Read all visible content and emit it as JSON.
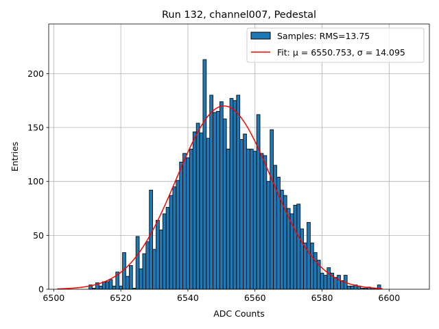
{
  "chart_data": {
    "type": "bar",
    "title": "Run 132, channel007, Pedestal",
    "xlabel": "ADC Counts",
    "ylabel": "Entries",
    "xlim": [
      6498.5,
      6612
    ],
    "ylim": [
      0,
      246
    ],
    "xticks": [
      6500,
      6520,
      6540,
      6560,
      6580,
      6600
    ],
    "yticks": [
      0,
      50,
      100,
      150,
      200
    ],
    "grid": true,
    "legend_position": "top-right",
    "bin_width": 1,
    "bins": {
      "x": [
        6511,
        6512,
        6513,
        6514,
        6515,
        6516,
        6517,
        6518,
        6519,
        6520,
        6521,
        6522,
        6523,
        6524,
        6525,
        6526,
        6527,
        6528,
        6529,
        6530,
        6531,
        6532,
        6533,
        6534,
        6535,
        6536,
        6537,
        6538,
        6539,
        6540,
        6541,
        6542,
        6543,
        6544,
        6545,
        6546,
        6547,
        6548,
        6549,
        6550,
        6551,
        6552,
        6553,
        6554,
        6555,
        6556,
        6557,
        6558,
        6559,
        6560,
        6561,
        6562,
        6563,
        6564,
        6565,
        6566,
        6567,
        6568,
        6569,
        6570,
        6571,
        6572,
        6573,
        6574,
        6575,
        6576,
        6577,
        6578,
        6579,
        6580,
        6581,
        6582,
        6583,
        6584,
        6585,
        6586,
        6587,
        6588,
        6589,
        6590,
        6591,
        6592,
        6593,
        6594,
        6595,
        6596,
        6597
      ],
      "values": [
        4,
        1,
        6,
        3,
        7,
        7,
        9,
        3,
        16,
        3,
        34,
        12,
        22,
        1,
        49,
        19,
        33,
        44,
        92,
        37,
        64,
        55,
        70,
        76,
        87,
        95,
        101,
        118,
        126,
        122,
        130,
        146,
        154,
        145,
        213,
        140,
        180,
        164,
        165,
        174,
        158,
        130,
        177,
        175,
        180,
        139,
        144,
        130,
        130,
        128,
        162,
        126,
        124,
        100,
        148,
        115,
        104,
        92,
        87,
        75,
        70,
        78,
        79,
        56,
        43,
        62,
        43,
        34,
        27,
        15,
        13,
        20,
        15,
        11,
        13,
        8,
        13,
        3,
        3,
        4,
        3,
        1,
        1,
        2,
        1,
        1,
        4
      ]
    },
    "series": [
      {
        "name": "Samples: RMS=13.75",
        "kind": "histogram",
        "color": "#1f77b4"
      },
      {
        "name": "Fit: μ = 6550.753, σ = 14.095",
        "kind": "line",
        "color": "#ff0000",
        "mu": 6550.753,
        "sigma": 14.095,
        "amplitude": 170,
        "x_range": [
          6501,
          6598
        ]
      }
    ]
  }
}
